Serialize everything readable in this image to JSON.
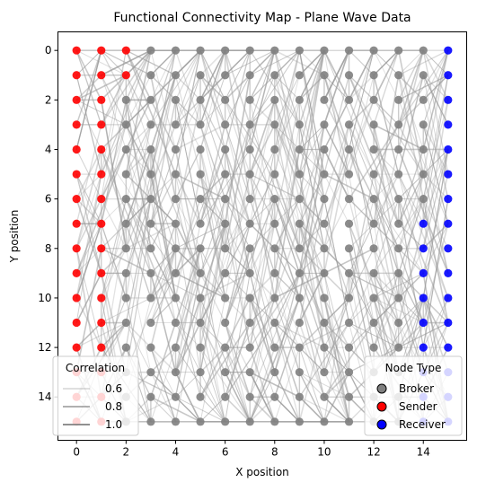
{
  "chart_data": {
    "type": "scatter",
    "title": "Functional Connectivity Map - Plane Wave Data",
    "xlabel": "X position",
    "ylabel": "Y position",
    "xlim": [
      -0.75,
      15.75
    ],
    "ylim": [
      15.75,
      -0.75
    ],
    "y_inverted": true,
    "xticks": [
      0,
      2,
      4,
      6,
      8,
      10,
      12,
      14
    ],
    "yticks": [
      0,
      2,
      4,
      6,
      8,
      10,
      12,
      14
    ],
    "grid": false,
    "grid_size": [
      16,
      16
    ],
    "node_types": {
      "sender": {
        "columns": [
          0,
          1
        ],
        "rows_by_column": {
          "0": [
            0,
            1,
            2,
            3,
            4,
            5,
            6,
            7,
            8,
            9,
            10,
            11,
            12,
            13,
            14,
            15
          ],
          "1": [
            0,
            1,
            2,
            3,
            4,
            5,
            6,
            7,
            8,
            9,
            10,
            11,
            12,
            13,
            14,
            15
          ]
        },
        "extra_points": [
          [
            2,
            0
          ],
          [
            2,
            1
          ]
        ]
      },
      "receiver": {
        "column_15_rows": [
          0,
          1,
          2,
          3,
          4,
          5,
          6,
          7,
          8,
          9,
          10,
          11,
          12,
          13,
          14,
          15
        ],
        "column_14_rows": [
          7,
          8,
          9,
          10,
          11,
          12,
          13,
          14,
          15
        ]
      },
      "broker": "all remaining grid positions"
    },
    "colors": {
      "broker": "#808080",
      "sender": "#ff0000",
      "receiver": "#0000ff",
      "edge": "#9a9a9a"
    },
    "edges_note_values": [
      0.6,
      0.8,
      1.0
    ],
    "legend_node": {
      "title": "Node Type",
      "placement": "lower right",
      "entries": [
        {
          "label": "Broker",
          "color": "#808080"
        },
        {
          "label": "Sender",
          "color": "#ff0000"
        },
        {
          "label": "Receiver",
          "color": "#0000ff"
        }
      ]
    },
    "legend_corr": {
      "title": "Correlation",
      "placement": "lower left",
      "entries": [
        {
          "label": "0.6",
          "width": 0.6
        },
        {
          "label": "0.8",
          "width": 1.2
        },
        {
          "label": "1.0",
          "width": 1.8
        }
      ]
    }
  }
}
